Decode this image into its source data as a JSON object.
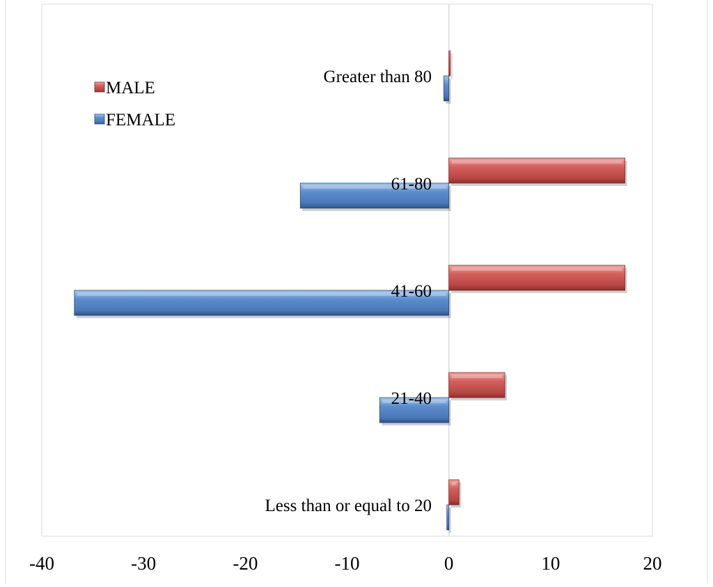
{
  "chart_data": {
    "type": "bar",
    "orientation": "horizontal",
    "categories": [
      "Less than or equal to 20",
      "21-40",
      "41-60",
      "61-80",
      "Greater than 80"
    ],
    "series": [
      {
        "name": "MALE",
        "values": [
          1,
          5.5,
          17.3,
          17.3,
          0.1
        ]
      },
      {
        "name": "FEMALE",
        "values": [
          -0.2,
          -6.8,
          -36.8,
          -14.6,
          -0.5
        ]
      }
    ],
    "xlim": [
      -40,
      20
    ],
    "xticks": [
      "-40",
      "-30",
      "-20",
      "-10",
      "0",
      "10",
      "20"
    ],
    "grid": false,
    "legend_position": "top-left",
    "colors": {
      "MALE": "#c0504d",
      "FEMALE": "#4f81bd"
    }
  }
}
